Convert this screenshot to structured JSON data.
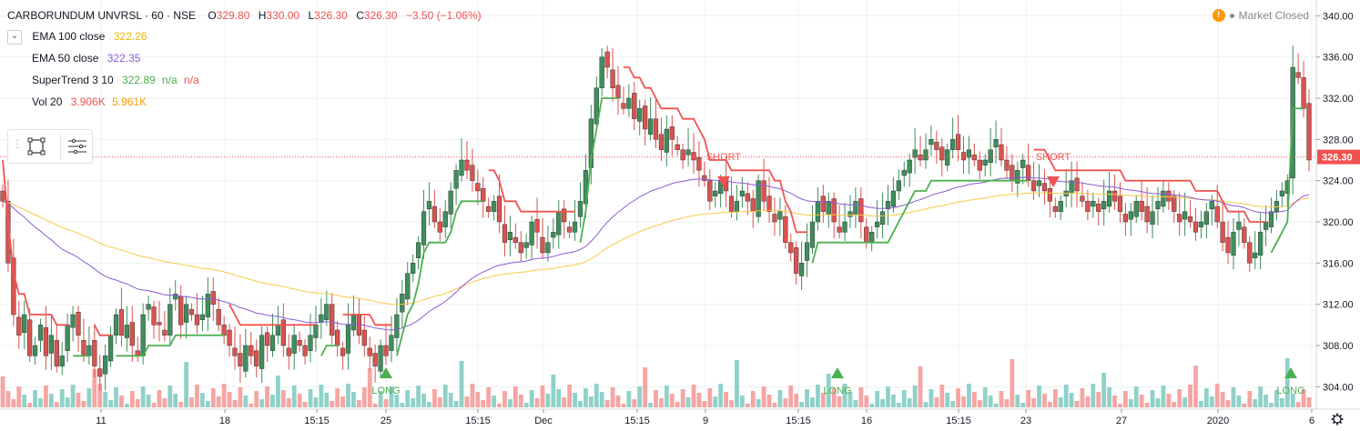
{
  "header": {
    "symbol": "CARBORUNDUM UNVRSL",
    "interval": "60",
    "exchange": "NSE",
    "o_label": "O",
    "open": "329.80",
    "h_label": "H",
    "high": "330.00",
    "l_label": "L",
    "low": "326.30",
    "c_label": "C",
    "close": "326.30",
    "change": "−3.50 (−1.06%)"
  },
  "indicators": {
    "ema100": {
      "label": "EMA 100 close",
      "value": "322.26"
    },
    "ema50": {
      "label": "EMA 50 close",
      "value": "322.35"
    },
    "supertrend": {
      "label": "SuperTrend 3 10",
      "value": "322.89",
      "na1": "n/a",
      "na2": "n/a"
    },
    "vol": {
      "label": "Vol 20",
      "v1": "3.906K",
      "v2": "5.961K"
    }
  },
  "status": {
    "text": "Market Closed",
    "warn_glyph": "!"
  },
  "colors": {
    "up": "#26a69a",
    "down": "#ef5350",
    "upBody": "#3f8e5c",
    "downBody": "#d9534f",
    "ema100": "#f7c948",
    "ema50": "#8e5bd3",
    "stUp": "#4caf50",
    "stDown": "#f05350",
    "volUp": "#8fd1c8",
    "volDown": "#f5a5a3",
    "last": "#ef5350",
    "grid": "#eef0f3"
  },
  "chart_data": {
    "type": "candlestick",
    "y_ticks": [
      "304.00",
      "308.00",
      "312.00",
      "316.00",
      "320.00",
      "324.00",
      "328.00",
      "332.00",
      "336.00",
      "340.00"
    ],
    "ylim": [
      302,
      341
    ],
    "x_ticks": [
      "11",
      "18",
      "15:15",
      "25",
      "15:15",
      "Dec",
      "15:15",
      "9",
      "15:15",
      "16",
      "15:15",
      "23",
      "27",
      "2020",
      "6"
    ],
    "last_price": "326.30",
    "signals": [
      {
        "text": "LONG",
        "type": "long"
      },
      {
        "text": "SHORT",
        "type": "short"
      },
      {
        "text": "LONG",
        "type": "long"
      },
      {
        "text": "SHORT",
        "type": "short"
      },
      {
        "text": "LONG",
        "type": "long"
      }
    ],
    "closes": [
      322,
      316,
      311,
      309,
      311,
      307,
      308,
      310,
      307,
      309,
      306,
      307,
      310,
      311,
      309,
      307,
      308,
      306,
      305,
      307,
      309,
      311,
      309,
      310,
      308,
      307,
      311,
      312,
      310,
      310,
      309,
      312,
      313,
      310,
      312,
      311,
      310,
      311,
      313,
      312,
      310,
      309,
      308,
      307,
      306,
      308,
      307,
      306,
      309,
      308,
      309,
      310,
      308,
      307,
      309,
      308,
      307,
      309,
      310,
      311,
      312,
      309,
      308,
      307,
      310,
      311,
      309,
      308,
      307,
      306,
      308,
      307,
      309,
      311,
      313,
      315,
      316,
      318,
      321,
      322,
      320,
      319,
      321,
      323,
      325,
      326,
      325,
      324,
      323,
      322,
      321,
      322,
      320,
      318,
      319,
      318,
      317,
      318,
      320,
      319,
      317,
      318,
      319,
      321,
      320,
      319,
      320,
      322,
      325,
      330,
      333,
      336,
      335,
      333,
      332,
      331,
      332,
      330,
      331,
      329,
      330,
      328,
      327,
      329,
      328,
      327,
      326,
      327,
      326,
      325,
      324,
      322,
      323,
      324,
      323,
      321,
      322,
      323,
      322,
      321,
      324,
      322,
      321,
      320,
      321,
      318,
      317,
      315,
      316,
      318,
      320,
      322,
      321,
      322,
      320,
      319,
      320,
      321,
      322,
      320,
      318,
      319,
      320,
      321,
      322,
      323,
      324,
      325,
      326,
      327,
      326,
      327,
      328,
      327,
      326,
      327,
      328,
      327,
      326,
      327,
      326,
      325,
      326,
      327,
      328,
      326,
      325,
      324,
      325,
      326,
      324,
      323,
      324,
      323,
      322,
      321,
      322,
      323,
      324,
      323,
      322,
      321,
      322,
      321,
      322,
      323,
      322,
      321,
      320,
      321,
      322,
      321,
      320,
      321,
      322,
      323,
      322,
      321,
      320,
      321,
      320,
      319,
      320,
      321,
      322,
      320,
      318,
      317,
      319,
      320,
      318,
      316,
      317,
      319,
      320,
      321,
      322,
      323,
      324,
      335,
      334,
      331,
      326
    ]
  }
}
